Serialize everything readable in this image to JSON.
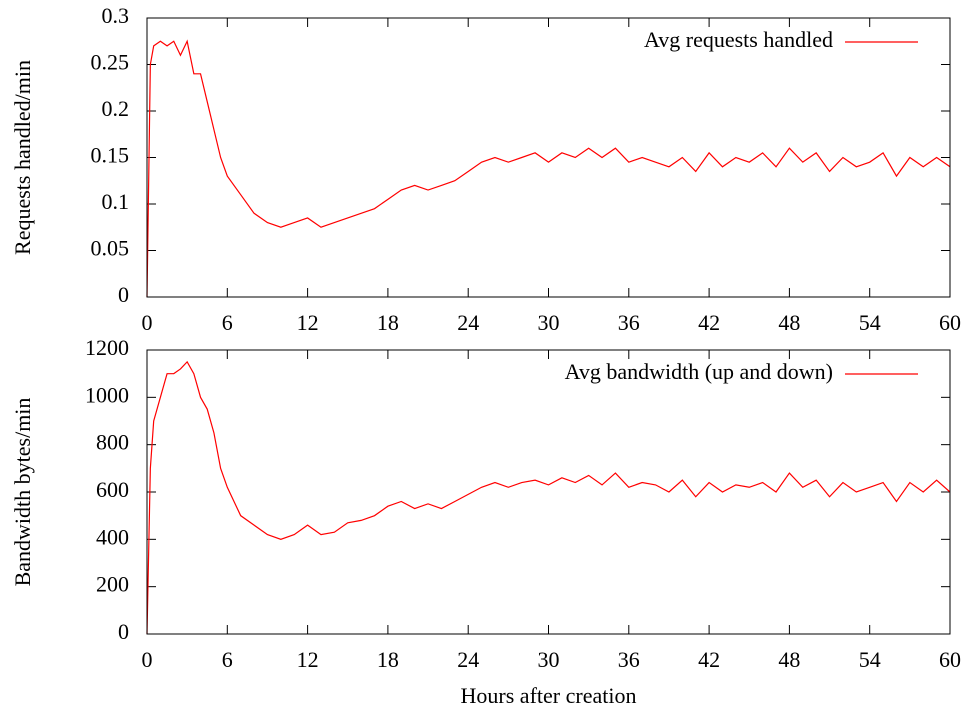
{
  "chart_data": [
    {
      "type": "line",
      "ylabel": "Requests handled/min",
      "x": [
        0,
        0.25,
        0.5,
        1,
        1.5,
        2,
        2.5,
        3,
        3.5,
        4,
        4.5,
        5,
        5.5,
        6,
        7,
        8,
        9,
        10,
        11,
        12,
        13,
        14,
        15,
        16,
        17,
        18,
        19,
        20,
        21,
        22,
        23,
        24,
        25,
        26,
        27,
        28,
        29,
        30,
        31,
        32,
        33,
        34,
        35,
        36,
        37,
        38,
        39,
        40,
        41,
        42,
        43,
        44,
        45,
        46,
        47,
        48,
        49,
        50,
        51,
        52,
        53,
        54,
        55,
        56,
        57,
        58,
        59,
        60
      ],
      "series": [
        {
          "name": "Avg requests handled",
          "color": "#ff0000",
          "values": [
            0,
            0.25,
            0.27,
            0.275,
            0.27,
            0.275,
            0.26,
            0.275,
            0.24,
            0.24,
            0.21,
            0.18,
            0.15,
            0.13,
            0.11,
            0.09,
            0.08,
            0.075,
            0.08,
            0.085,
            0.075,
            0.08,
            0.085,
            0.09,
            0.095,
            0.105,
            0.115,
            0.12,
            0.115,
            0.12,
            0.125,
            0.135,
            0.145,
            0.15,
            0.145,
            0.15,
            0.155,
            0.145,
            0.155,
            0.15,
            0.16,
            0.15,
            0.16,
            0.145,
            0.15,
            0.145,
            0.14,
            0.15,
            0.135,
            0.155,
            0.14,
            0.15,
            0.145,
            0.155,
            0.14,
            0.16,
            0.145,
            0.155,
            0.135,
            0.15,
            0.14,
            0.145,
            0.155,
            0.13,
            0.15,
            0.14,
            0.15,
            0.14
          ]
        }
      ],
      "xlim": [
        0,
        60
      ],
      "xticks": [
        0,
        6,
        12,
        18,
        24,
        30,
        36,
        42,
        48,
        54,
        60
      ],
      "ylim": [
        0,
        0.3
      ],
      "yticks": [
        0,
        0.05,
        0.1,
        0.15,
        0.2,
        0.25,
        0.3
      ],
      "legend": "top right"
    },
    {
      "type": "line",
      "xlabel": "Hours after creation",
      "ylabel": "Bandwidth bytes/min",
      "x": [
        0,
        0.25,
        0.5,
        1,
        1.5,
        2,
        2.5,
        3,
        3.5,
        4,
        4.5,
        5,
        5.5,
        6,
        7,
        8,
        9,
        10,
        11,
        12,
        13,
        14,
        15,
        16,
        17,
        18,
        19,
        20,
        21,
        22,
        23,
        24,
        25,
        26,
        27,
        28,
        29,
        30,
        31,
        32,
        33,
        34,
        35,
        36,
        37,
        38,
        39,
        40,
        41,
        42,
        43,
        44,
        45,
        46,
        47,
        48,
        49,
        50,
        51,
        52,
        53,
        54,
        55,
        56,
        57,
        58,
        59,
        60
      ],
      "series": [
        {
          "name": "Avg bandwidth (up and down)",
          "color": "#ff0000",
          "values": [
            0,
            700,
            900,
            1000,
            1100,
            1100,
            1120,
            1150,
            1100,
            1000,
            950,
            850,
            700,
            620,
            500,
            460,
            420,
            400,
            420,
            460,
            420,
            430,
            470,
            480,
            500,
            540,
            560,
            530,
            550,
            530,
            560,
            590,
            620,
            640,
            620,
            640,
            650,
            630,
            660,
            640,
            670,
            630,
            680,
            620,
            640,
            630,
            600,
            650,
            580,
            640,
            600,
            630,
            620,
            640,
            600,
            680,
            620,
            650,
            580,
            640,
            600,
            620,
            640,
            560,
            640,
            600,
            650,
            600
          ]
        }
      ],
      "xlim": [
        0,
        60
      ],
      "xticks": [
        0,
        6,
        12,
        18,
        24,
        30,
        36,
        42,
        48,
        54,
        60
      ],
      "ylim": [
        0,
        1200
      ],
      "yticks": [
        0,
        200,
        400,
        600,
        800,
        1000,
        1200
      ],
      "legend": "top right"
    }
  ]
}
